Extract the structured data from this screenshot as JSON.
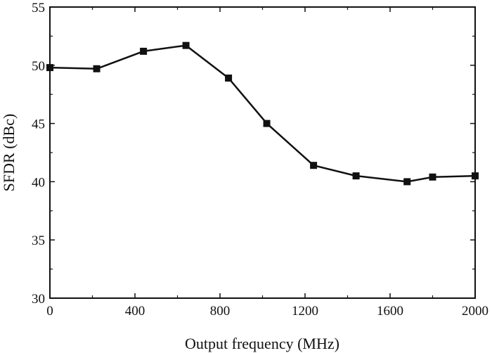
{
  "chart_data": {
    "type": "line",
    "xlabel": "Output frequency (MHz)",
    "ylabel": "SFDR (dBc)",
    "xlim": [
      0,
      2000
    ],
    "ylim": [
      30,
      55
    ],
    "xticks": [
      0,
      400,
      800,
      1200,
      1600,
      2000
    ],
    "yticks": [
      30,
      35,
      40,
      45,
      50,
      55
    ],
    "grid": false,
    "series": [
      {
        "marker": "square",
        "color": "#111111",
        "x": [
          0,
          220,
          440,
          640,
          840,
          1020,
          1240,
          1440,
          1680,
          1800,
          2000
        ],
        "y": [
          49.8,
          49.7,
          51.2,
          51.7,
          48.9,
          45.0,
          41.4,
          40.5,
          40.0,
          40.4,
          40.5
        ]
      }
    ]
  }
}
